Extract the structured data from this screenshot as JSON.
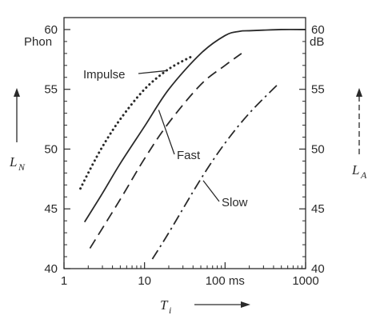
{
  "chart_data": {
    "type": "line",
    "xscale": "log",
    "xlim": [
      1,
      1000
    ],
    "ylim": [
      40,
      61
    ],
    "x_ticks": [
      "1",
      "10",
      "100 ms",
      "1000"
    ],
    "x_tick_values": [
      1,
      10,
      100,
      1000
    ],
    "y_ticks_left": [
      "40",
      "45",
      "50",
      "55",
      "60"
    ],
    "y_ticks_right": [
      "40",
      "45",
      "50",
      "55",
      "60"
    ],
    "y_tick_values": [
      40,
      45,
      50,
      55,
      60
    ],
    "left_unit": "Phon",
    "right_unit": "dB",
    "xlabel": {
      "symbol": "T",
      "sub": "i"
    },
    "ylabel_left": {
      "symbol": "L",
      "sub": "N"
    },
    "ylabel_right": {
      "symbol": "L",
      "sub": "A"
    },
    "series": [
      {
        "name": "Impulse",
        "style": "dotted",
        "x": [
          1.6,
          2,
          3,
          5,
          10,
          20,
          40
        ],
        "y": [
          46.7,
          48.0,
          50.2,
          52.5,
          55.0,
          56.7,
          57.8
        ]
      },
      {
        "name": "Fast",
        "style": "solid",
        "x": [
          1.8,
          3,
          5,
          10,
          20,
          50,
          100,
          150,
          200,
          300,
          500,
          1000
        ],
        "y": [
          43.9,
          46.3,
          48.8,
          51.9,
          55.0,
          58.0,
          59.5,
          59.85,
          59.9,
          59.95,
          60,
          60
        ]
      },
      {
        "name": "Fast",
        "style": "dashed",
        "x": [
          2.1,
          5,
          10,
          20,
          50,
          100,
          160
        ],
        "y": [
          41.7,
          45.8,
          49.2,
          52.2,
          55.4,
          57.0,
          58.0
        ]
      },
      {
        "name": "Slow",
        "style": "dashdot",
        "x": [
          12.5,
          20,
          50,
          100,
          200,
          450
        ],
        "y": [
          40.8,
          43.0,
          47.5,
          50.5,
          53.0,
          55.4
        ]
      }
    ],
    "annotations": [
      {
        "text": "Impulse",
        "series": 0
      },
      {
        "text": "Fast",
        "series": 1
      },
      {
        "text": "Slow",
        "series": 3
      }
    ]
  }
}
